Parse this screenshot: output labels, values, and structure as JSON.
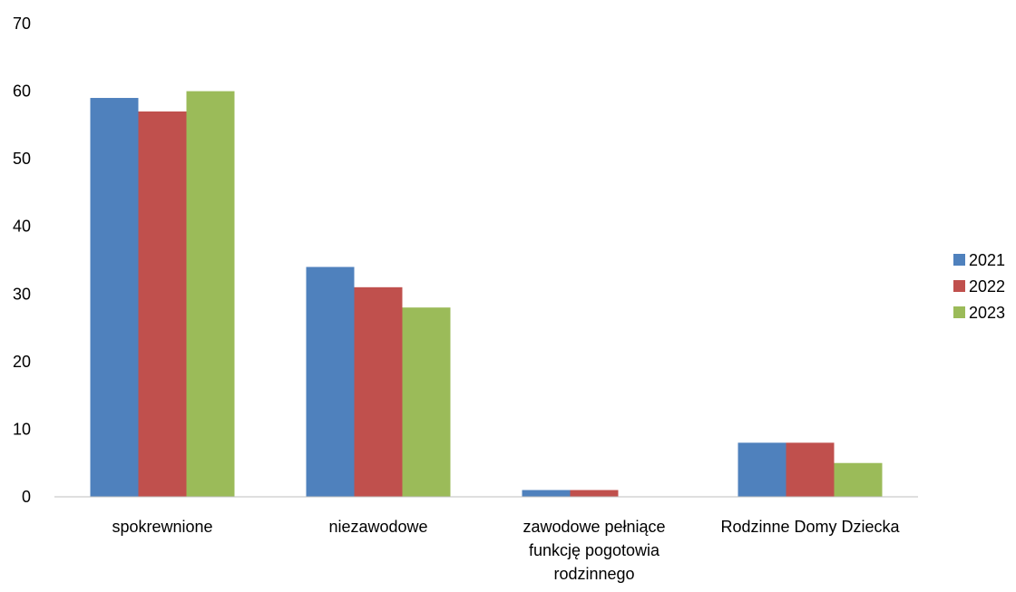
{
  "chart_data": {
    "type": "bar",
    "categories": [
      [
        "spokrewnione"
      ],
      [
        "niezawodowe"
      ],
      [
        "zawodowe pełniące",
        "funkcję pogotowia",
        "rodzinnego"
      ],
      [
        "Rodzinne Domy Dziecka"
      ]
    ],
    "series": [
      {
        "name": "2021",
        "color": "#4F81BD",
        "values": [
          59,
          34,
          1,
          8
        ]
      },
      {
        "name": "2022",
        "color": "#C0504D",
        "values": [
          57,
          31,
          1,
          8
        ]
      },
      {
        "name": "2023",
        "color": "#9BBB59",
        "values": [
          60,
          28,
          0,
          5
        ]
      }
    ],
    "ylim": [
      0,
      70
    ],
    "yticks": [
      0,
      10,
      20,
      30,
      40,
      50,
      60,
      70
    ],
    "grid": false,
    "legend_position": "right",
    "title": "",
    "xlabel": "",
    "ylabel": ""
  }
}
